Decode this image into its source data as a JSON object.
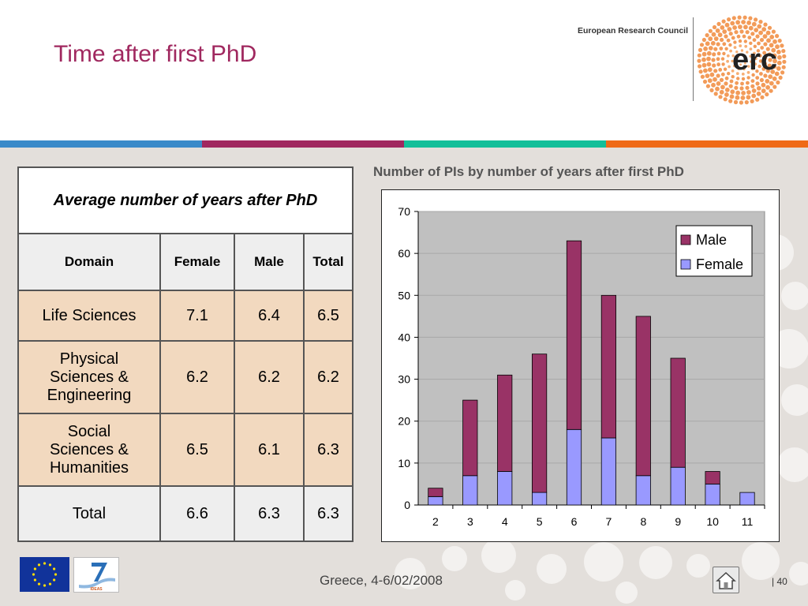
{
  "slide": {
    "title": "Time after first PhD",
    "council": "European Research Council",
    "erc_logo_text": "erc",
    "stripe_colors": [
      "#3a8ac9",
      "#a0285f",
      "#12bf99",
      "#ef6a17"
    ]
  },
  "table": {
    "caption": "Average number of years after PhD",
    "headers": [
      "Domain",
      "Female",
      "Male",
      "Total"
    ],
    "rows": [
      {
        "domain": [
          "Life Sciences"
        ],
        "female": "7.1",
        "male": "6.4",
        "total": "6.5"
      },
      {
        "domain": [
          "Physical",
          "Sciences &",
          "Engineering"
        ],
        "female": "6.2",
        "male": "6.2",
        "total": "6.2"
      },
      {
        "domain": [
          "Social",
          "Sciences &",
          "Humanities"
        ],
        "female": "6.5",
        "male": "6.1",
        "total": "6.3"
      },
      {
        "domain": [
          "Total"
        ],
        "female": "6.6",
        "male": "6.3",
        "total": "6.3"
      }
    ]
  },
  "chart_data": {
    "type": "bar",
    "stacked": true,
    "title": "Number of PIs by number of years after first PhD",
    "categories": [
      "2",
      "3",
      "4",
      "5",
      "6",
      "7",
      "8",
      "9",
      "10",
      "11"
    ],
    "series": [
      {
        "name": "Female",
        "color": "#9999ff",
        "values": [
          2,
          7,
          8,
          3,
          18,
          16,
          7,
          9,
          5,
          3
        ]
      },
      {
        "name": "Male",
        "color": "#993366",
        "values": [
          2,
          18,
          23,
          33,
          45,
          34,
          38,
          26,
          3,
          0
        ]
      }
    ],
    "yticks": [
      "0",
      "10",
      "20",
      "30",
      "40",
      "50",
      "60",
      "70"
    ],
    "ylim": [
      0,
      70
    ],
    "grid": true,
    "legend_position": "top-right",
    "plot_background": "#c0c0c0"
  },
  "footer": {
    "text": "Greece, 4-6/02/2008",
    "page_separator": "|",
    "page_number": "40",
    "home_icon": "home-icon",
    "logos": [
      "eu-flag",
      "fp7-ideas-logo"
    ],
    "fp7_logo_text": "IDEAS"
  }
}
